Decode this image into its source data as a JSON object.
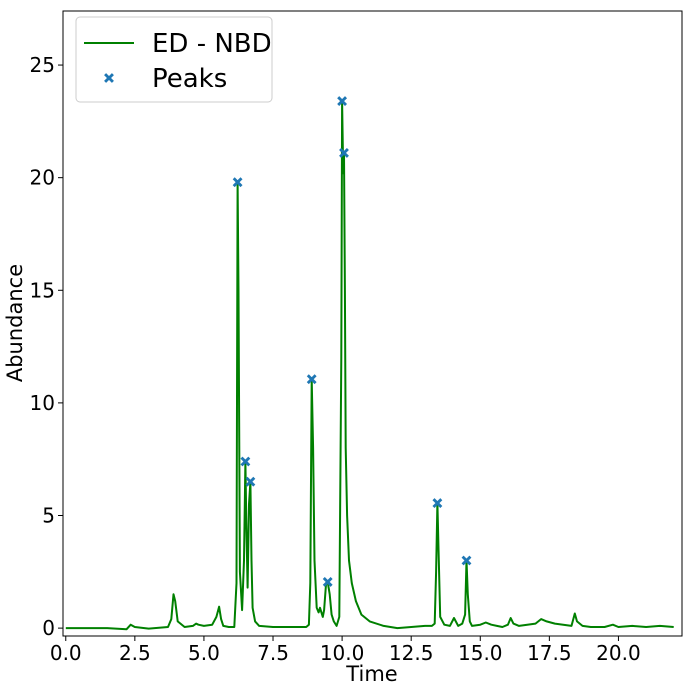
{
  "chart_data": {
    "type": "line",
    "title": "",
    "xlabel": "Time",
    "ylabel": "Abundance",
    "xlim": [
      -0.1,
      22.3
    ],
    "ylim": [
      -0.35,
      27.4
    ],
    "xticks": [
      0.0,
      2.5,
      5.0,
      7.5,
      10.0,
      12.5,
      15.0,
      17.5,
      20.0
    ],
    "xtick_labels": [
      "0.0",
      "2.5",
      "5.0",
      "7.5",
      "10.0",
      "12.5",
      "15.0",
      "17.5",
      "20.0"
    ],
    "yticks": [
      0,
      5,
      10,
      15,
      20,
      25
    ],
    "ytick_labels": [
      "0",
      "5",
      "10",
      "15",
      "20",
      "25"
    ],
    "grid": false,
    "legend_position": "top-left",
    "series": [
      {
        "name": "ED - NBD",
        "kind": "line",
        "color": "#008000",
        "x": [
          0.0,
          1.5,
          2.2,
          2.35,
          2.5,
          3.0,
          3.7,
          3.82,
          3.9,
          3.96,
          4.05,
          4.3,
          4.6,
          4.72,
          4.8,
          5.0,
          5.3,
          5.45,
          5.55,
          5.62,
          5.7,
          5.9,
          6.1,
          6.18,
          6.22,
          6.25,
          6.3,
          6.38,
          6.45,
          6.5,
          6.53,
          6.58,
          6.63,
          6.68,
          6.72,
          6.76,
          6.85,
          7.0,
          7.5,
          8.0,
          8.4,
          8.7,
          8.8,
          8.85,
          8.9,
          8.95,
          9.0,
          9.08,
          9.15,
          9.2,
          9.3,
          9.35,
          9.42,
          9.48,
          9.55,
          9.62,
          9.7,
          9.8,
          9.9,
          9.97,
          10.0,
          10.04,
          10.07,
          10.1,
          10.13,
          10.18,
          10.25,
          10.35,
          10.5,
          10.7,
          11.0,
          11.5,
          12.0,
          12.5,
          13.0,
          13.25,
          13.35,
          13.4,
          13.45,
          13.5,
          13.55,
          13.7,
          13.9,
          14.05,
          14.2,
          14.35,
          14.45,
          14.5,
          14.55,
          14.62,
          14.7,
          15.0,
          15.2,
          15.4,
          15.6,
          15.8,
          16.0,
          16.1,
          16.2,
          16.4,
          16.7,
          17.0,
          17.2,
          17.4,
          17.7,
          18.0,
          18.3,
          18.42,
          18.5,
          18.7,
          19.0,
          19.5,
          19.8,
          20.0,
          20.5,
          21.0,
          21.5,
          22.0
        ],
        "y": [
          0.0,
          0.0,
          -0.05,
          0.15,
          0.05,
          -0.02,
          0.05,
          0.4,
          1.5,
          1.2,
          0.3,
          0.05,
          0.1,
          0.2,
          0.15,
          0.1,
          0.15,
          0.5,
          0.95,
          0.4,
          0.1,
          0.05,
          0.05,
          2.0,
          19.8,
          15.0,
          2.5,
          0.8,
          3.0,
          7.4,
          5.0,
          1.8,
          5.5,
          6.5,
          3.0,
          0.9,
          0.3,
          0.1,
          0.05,
          0.05,
          0.05,
          0.05,
          0.15,
          2.0,
          11.05,
          8.0,
          3.0,
          0.9,
          0.7,
          0.9,
          0.5,
          0.8,
          2.0,
          2.05,
          1.5,
          0.6,
          0.3,
          0.1,
          0.5,
          12.0,
          23.4,
          20.2,
          21.1,
          15.0,
          8.0,
          5.0,
          3.0,
          2.0,
          1.2,
          0.6,
          0.3,
          0.1,
          0.0,
          0.05,
          0.1,
          0.1,
          0.2,
          2.5,
          5.55,
          3.0,
          0.5,
          0.15,
          0.1,
          0.45,
          0.1,
          0.2,
          0.6,
          3.0,
          1.5,
          0.3,
          0.1,
          0.15,
          0.25,
          0.15,
          0.1,
          0.05,
          0.15,
          0.45,
          0.2,
          0.1,
          0.15,
          0.2,
          0.4,
          0.3,
          0.2,
          0.15,
          0.1,
          0.65,
          0.3,
          0.1,
          0.05,
          0.05,
          0.15,
          0.05,
          0.1,
          0.05,
          0.1,
          0.05
        ]
      },
      {
        "name": "Peaks",
        "kind": "scatter",
        "marker": "X",
        "color": "#1f77b4",
        "x": [
          6.22,
          6.5,
          6.68,
          8.9,
          9.48,
          10.0,
          10.07,
          13.45,
          14.5
        ],
        "y": [
          19.8,
          7.4,
          6.5,
          11.05,
          2.05,
          23.4,
          21.1,
          5.55,
          3.0
        ]
      }
    ]
  }
}
